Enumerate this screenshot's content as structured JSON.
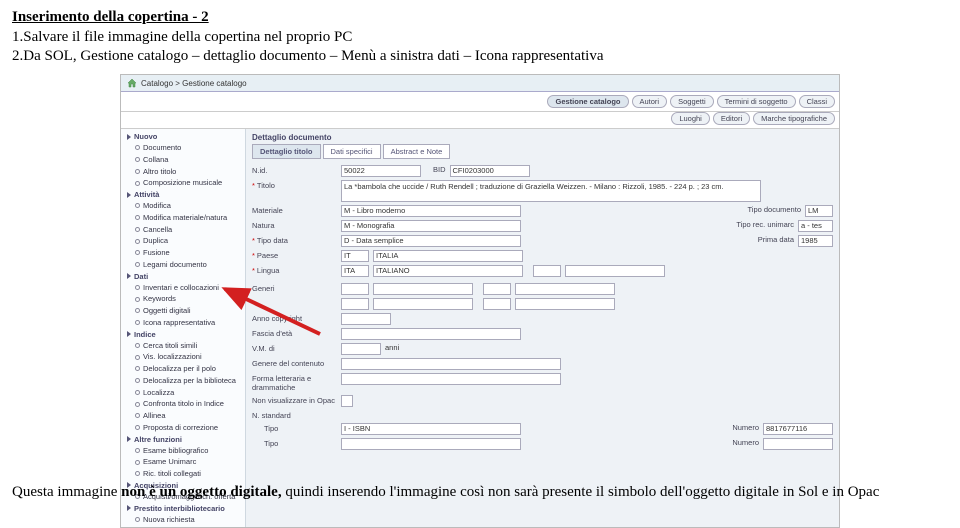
{
  "document": {
    "title": "Inserimento della copertina - 2",
    "line1": "1.Salvare il file immagine della copertina nel proprio PC",
    "line2": "2.Da SOL, Gestione catalogo – dettaglio documento – Menù a sinistra dati – Icona rappresentativa",
    "footer_prefix": "Questa immagine ",
    "footer_bold": "non è un oggetto digitale,",
    "footer_suffix": " quindi inserendo l'immagine così non sarà presente il simbolo dell'oggetto digitale in Sol e in Opac"
  },
  "breadcrumb": {
    "path": "Catalogo > Gestione catalogo"
  },
  "tabs_top": [
    "Gestione catalogo",
    "Autori",
    "Soggetti",
    "Termini di soggetto",
    "Classi"
  ],
  "tabs_bottom": [
    "Luoghi",
    "Editori",
    "Marche tipografiche"
  ],
  "sidebar": {
    "groups": [
      {
        "label": "Nuovo",
        "items": [
          "Documento",
          "Collana",
          "Altro titolo",
          "Composizione musicale"
        ]
      },
      {
        "label": "Attività",
        "items": [
          "Modifica",
          "Modifica materiale/natura",
          "Cancella",
          "Duplica",
          "Fusione",
          "Legami documento"
        ]
      },
      {
        "label": "Dati",
        "items": [
          "Inventari e collocazioni",
          "Keywords",
          "Oggetti digitali",
          "Icona rappresentativa"
        ]
      },
      {
        "label": "Indice",
        "items": [
          "Cerca titoli simili",
          "Vis. localizzazioni",
          "Delocalizza per il polo",
          "Delocalizza per la biblioteca",
          "Localizza",
          "Confronta titolo in Indice",
          "Allinea",
          "Proposta di correzione"
        ]
      },
      {
        "label": "Altre funzioni",
        "items": [
          "Esame bibliografico",
          "Esame Unimarc",
          "Ric. titoli collegati"
        ]
      },
      {
        "label": "Acquisizioni",
        "items": [
          "Acquisti/omaggi/rich. offerta"
        ]
      },
      {
        "label": "Prestito interbibliotecario",
        "items": [
          "Nuova richiesta"
        ]
      }
    ]
  },
  "detail": {
    "header": "Dettaglio documento",
    "tabs": [
      "Dettaglio titolo",
      "Dati specifici",
      "Abstract e Note"
    ],
    "fields": {
      "nid_label": "N.id.",
      "nid_value": "50022",
      "bid_label": "BID",
      "bid_value": "CFI0203000",
      "titolo_label": "Titolo",
      "titolo_value": "La *bambola che uccide / Ruth Rendell ; traduzione di Graziella Weizzen. - Milano : Rizzoli, 1985. - 224 p. ; 23 cm.",
      "materiale_label": "Materiale",
      "materiale_value": "M - Libro moderno",
      "tipo_doc_label": "Tipo documento",
      "tipo_doc_value": "LM",
      "natura_label": "Natura",
      "natura_value": "M - Monografia",
      "tipo_rec_label": "Tipo rec. unimarc",
      "tipo_rec_value": "a - tes",
      "tipo_data_label": "Tipo data",
      "tipo_data_value": "D - Data semplice",
      "prima_data_label": "Prima data",
      "prima_data_value": "1985",
      "paese_label": "Paese",
      "paese_code": "IT",
      "paese_name": "ITALIA",
      "lingua_label": "Lingua",
      "lingua_code": "ITA",
      "lingua_name": "ITALIANO",
      "generi_label": "Generi",
      "anno_copyright_label": "Anno copyright",
      "fascia_label": "Fascia d'età",
      "vm_label": "V.M. di",
      "vm_suffix": "anni",
      "genere_cont_label": "Genere del contenuto",
      "forma_label": "Forma letteraria e drammatiche",
      "non_vis_label": "Non visualizzare in Opac",
      "n_standard_label": "N. standard",
      "tipo1_label": "Tipo",
      "tipo1_value": "I - ISBN",
      "numero_label": "Numero",
      "numero_value": "8817677116",
      "tipo2_label": "Tipo"
    }
  },
  "colors": {
    "breadcrumb_bg": "#e7eff4",
    "app_bg": "#eef2f6",
    "arrow": "#d32020"
  }
}
